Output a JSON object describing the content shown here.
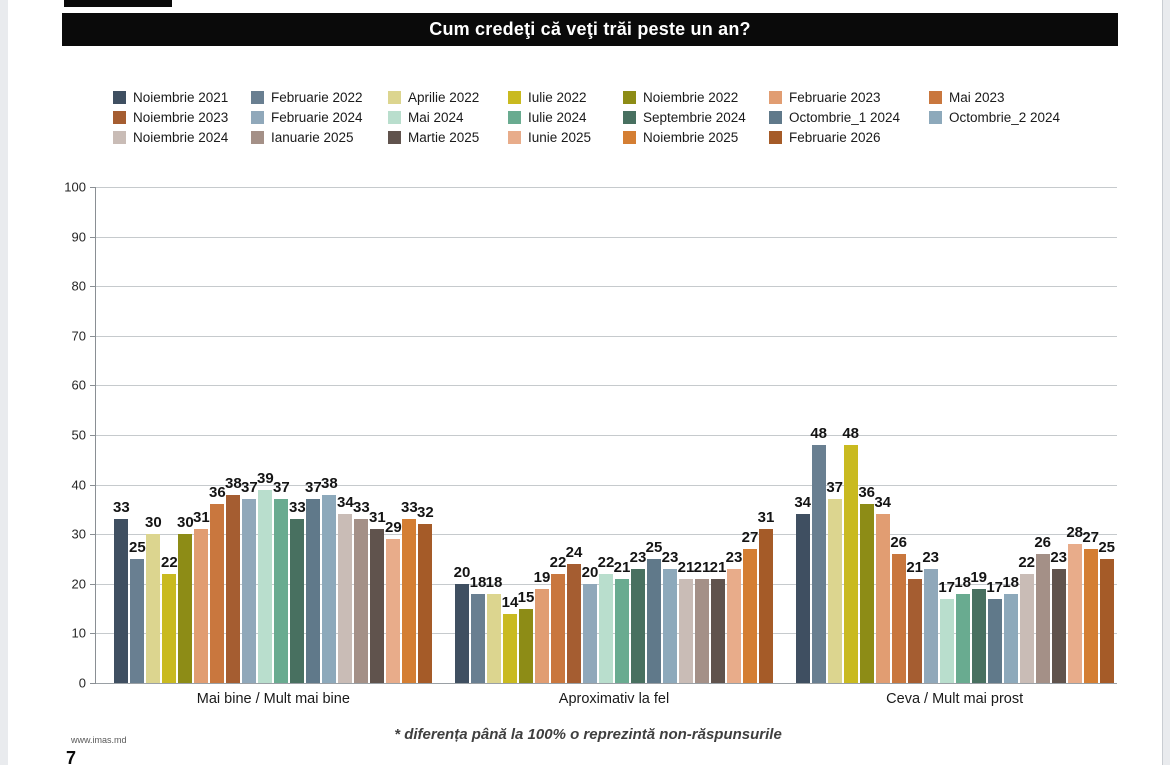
{
  "page": {
    "title": "Cum credeţi că veţi trăi peste un an?",
    "footnote": "* diferența până la 100% o reprezintă non-răspunsurile",
    "website": "www.imas.md",
    "page_number": "7"
  },
  "chart_data": {
    "type": "bar",
    "title": "Cum credeţi că veţi trăi peste un an?",
    "categories": [
      "Mai bine / Mult mai bine",
      "Aproximativ la fel",
      "Ceva  / Mult mai prost"
    ],
    "xlabel": "",
    "ylabel": "",
    "ylim": [
      0,
      100
    ],
    "ytick_step": 10,
    "grid": true,
    "legend_position": "top",
    "value_labels": true,
    "series": [
      {
        "name": "Noiembrie 2021",
        "color": "#3f4f61",
        "values": [
          33,
          20,
          34
        ]
      },
      {
        "name": "Februarie 2022",
        "color": "#697f91",
        "values": [
          25,
          18,
          48
        ]
      },
      {
        "name": "Aprilie 2022",
        "color": "#dcd58f",
        "values": [
          30,
          18,
          37
        ]
      },
      {
        "name": "Iulie 2022",
        "color": "#c9ba20",
        "values": [
          22,
          14,
          48
        ]
      },
      {
        "name": "Noiembrie 2022",
        "color": "#8d8c16",
        "values": [
          30,
          15,
          36
        ]
      },
      {
        "name": "Februarie 2023",
        "color": "#e19d72",
        "values": [
          31,
          19,
          34
        ]
      },
      {
        "name": "Mai 2023",
        "color": "#c9773e",
        "values": [
          36,
          22,
          26
        ]
      },
      {
        "name": "Noiembrie 2023",
        "color": "#a55d31",
        "values": [
          38,
          24,
          21
        ]
      },
      {
        "name": "Februarie 2024",
        "color": "#90a8ba",
        "values": [
          37,
          20,
          23
        ]
      },
      {
        "name": "Mai 2024",
        "color": "#b9decd",
        "values": [
          39,
          22,
          17
        ]
      },
      {
        "name": "Iulie 2024",
        "color": "#69ab90",
        "values": [
          37,
          21,
          18
        ]
      },
      {
        "name": "Septembrie 2024",
        "color": "#487060",
        "values": [
          33,
          23,
          19
        ]
      },
      {
        "name": "Octombrie_1 2024",
        "color": "#60798a",
        "values": [
          37,
          25,
          17
        ]
      },
      {
        "name": "Octombrie_2 2024",
        "color": "#8da9bb",
        "values": [
          38,
          23,
          18
        ]
      },
      {
        "name": "Noiembrie 2024",
        "color": "#c9bcb6",
        "values": [
          34,
          21,
          22
        ]
      },
      {
        "name": "Ianuarie 2025",
        "color": "#a49087",
        "values": [
          33,
          21,
          26
        ]
      },
      {
        "name": "Martie 2025",
        "color": "#60534d",
        "values": [
          31,
          21,
          23
        ]
      },
      {
        "name": "Iunie 2025",
        "color": "#e8ac8a",
        "values": [
          29,
          23,
          28
        ]
      },
      {
        "name": "Noiembrie 2025",
        "color": "#d47e33",
        "values": [
          33,
          27,
          27
        ]
      },
      {
        "name": "Februarie 2026",
        "color": "#a55b28",
        "values": [
          32,
          31,
          25
        ]
      }
    ]
  }
}
